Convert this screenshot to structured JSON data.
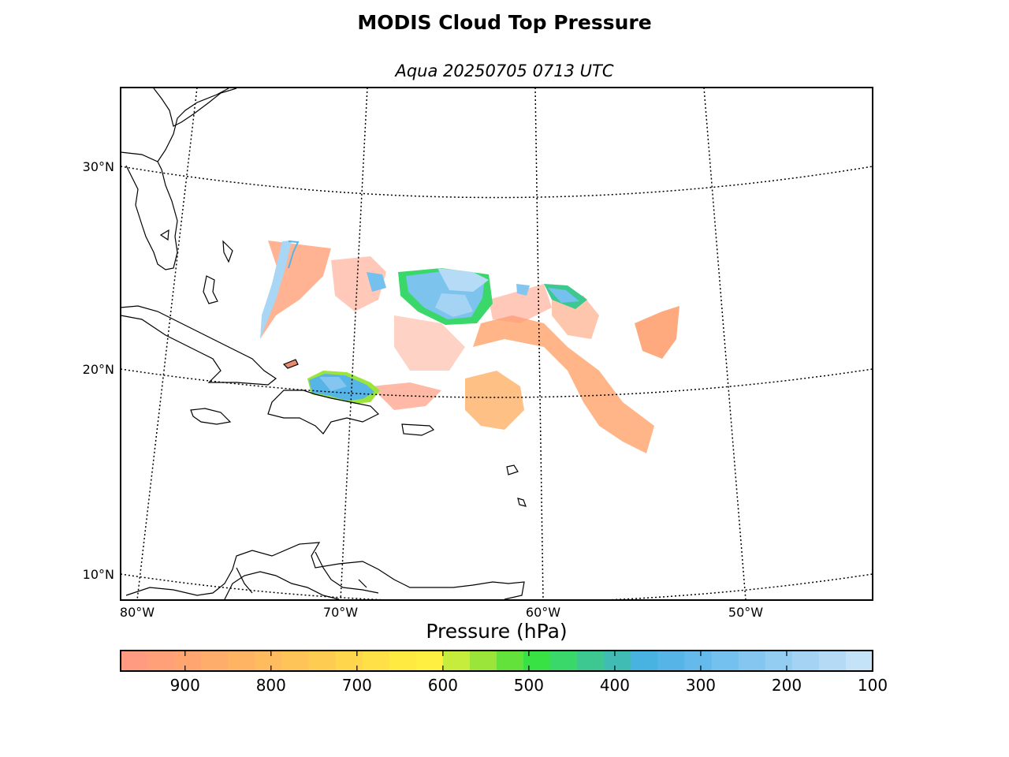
{
  "title": "MODIS Cloud Top Pressure",
  "subtitle": "Aqua 20250705 0713 UTC",
  "map": {
    "lat_labels": [
      "30°N",
      "20°N",
      "10°N"
    ],
    "lon_labels": [
      "80°W",
      "70°W",
      "60°W",
      "50°W"
    ]
  },
  "colorbar": {
    "label": "Pressure (hPa)",
    "ticks": [
      "900",
      "800",
      "700",
      "600",
      "500",
      "400",
      "300",
      "200",
      "100"
    ],
    "tick_values": [
      900,
      800,
      700,
      600,
      500,
      400,
      300,
      200,
      100
    ],
    "range": [
      975,
      100
    ],
    "colors": [
      "#ff9b80",
      "#ffa078",
      "#ffa670",
      "#ffad6a",
      "#ffb464",
      "#ffbc5e",
      "#ffc458",
      "#ffcc52",
      "#ffd64c",
      "#ffe046",
      "#ffea42",
      "#ffef40",
      "#c6ec3c",
      "#9be53a",
      "#63e23c",
      "#38e244",
      "#3ad86a",
      "#3cc890",
      "#40bcb4",
      "#48b2e0",
      "#56b5e6",
      "#64baea",
      "#74c0ee",
      "#84c6f0",
      "#94cdf2",
      "#a4d3f4",
      "#b4daf6",
      "#c4e2f8"
    ]
  },
  "chart_data": {
    "type": "heatmap",
    "title": "MODIS Cloud Top Pressure",
    "subtitle": "Aqua 20250705 0713 UTC",
    "colorbar_label": "Pressure (hPa)",
    "value_range": [
      975,
      100
    ],
    "lat_range": [
      9,
      34
    ],
    "lon_range": [
      -81,
      -44
    ],
    "features": [
      "low clouds ~850-950 hPa east of 65°W",
      "high clouds ~150-300 hPa near 24°N 65°W",
      "high clouds ~250 hPa near 19°N 70°W"
    ]
  }
}
